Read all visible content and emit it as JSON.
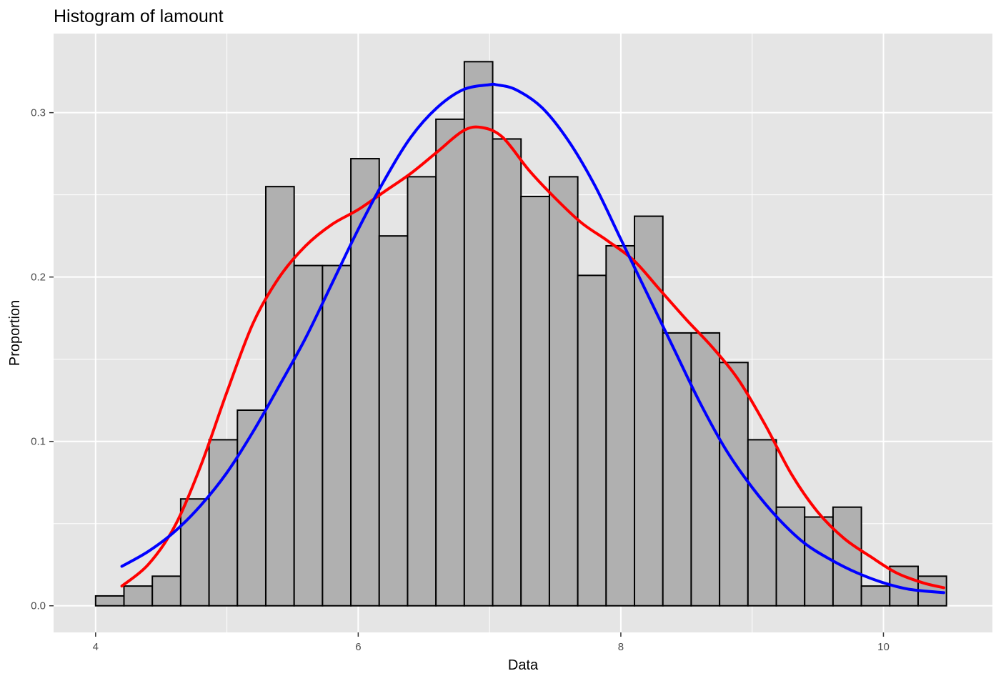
{
  "chart_data": {
    "type": "bar",
    "title": "Histogram of lamount",
    "xlabel": "Data",
    "ylabel": "Proportion",
    "xlim": [
      3.68,
      10.83
    ],
    "ylim": [
      -0.0162,
      0.3481
    ],
    "x_ticks": [
      4,
      6,
      8,
      10
    ],
    "x_tick_labels": [
      "4",
      "6",
      "8",
      "10"
    ],
    "y_ticks": [
      0.0,
      0.1,
      0.2,
      0.3
    ],
    "y_tick_labels": [
      "0.0",
      "0.1",
      "0.2",
      "0.3"
    ],
    "grid": true,
    "bins": {
      "edges": [
        4.0,
        4.216,
        4.432,
        4.648,
        4.864,
        5.08,
        5.296,
        5.512,
        5.728,
        5.944,
        6.16,
        6.376,
        6.592,
        6.808,
        7.024,
        7.24,
        7.456,
        7.672,
        7.888,
        8.104,
        8.32,
        8.536,
        8.752,
        8.968,
        9.184,
        9.4,
        9.616,
        9.832,
        10.048,
        10.264,
        10.48
      ],
      "values": [
        0.006,
        0.012,
        0.018,
        0.065,
        0.101,
        0.119,
        0.255,
        0.207,
        0.207,
        0.272,
        0.225,
        0.261,
        0.296,
        0.331,
        0.284,
        0.249,
        0.261,
        0.201,
        0.219,
        0.237,
        0.166,
        0.166,
        0.148,
        0.101,
        0.06,
        0.054,
        0.06,
        0.012,
        0.024,
        0.018
      ]
    },
    "series": [
      {
        "type": "line",
        "x": [
          4.2,
          4.4,
          4.6,
          4.8,
          5.0,
          5.2,
          5.4,
          5.6,
          5.8,
          6.0,
          6.2,
          6.4,
          6.6,
          6.8,
          6.94,
          7.1,
          7.3,
          7.5,
          7.7,
          7.9,
          8.1,
          8.3,
          8.5,
          8.7,
          8.9,
          9.1,
          9.3,
          9.5,
          9.7,
          9.9,
          10.1,
          10.3,
          10.46
        ],
        "y": [
          0.012,
          0.025,
          0.048,
          0.085,
          0.13,
          0.172,
          0.2,
          0.219,
          0.232,
          0.241,
          0.252,
          0.263,
          0.276,
          0.289,
          0.291,
          0.285,
          0.265,
          0.248,
          0.233,
          0.222,
          0.21,
          0.192,
          0.174,
          0.157,
          0.137,
          0.11,
          0.08,
          0.057,
          0.041,
          0.03,
          0.02,
          0.014,
          0.011
        ],
        "color": "#ff0000"
      },
      {
        "type": "line",
        "x": [
          4.2,
          4.4,
          4.6,
          4.8,
          5.0,
          5.2,
          5.4,
          5.6,
          5.8,
          6.0,
          6.2,
          6.4,
          6.6,
          6.8,
          7.0,
          7.05,
          7.2,
          7.4,
          7.6,
          7.8,
          8.0,
          8.2,
          8.4,
          8.6,
          8.8,
          9.0,
          9.2,
          9.4,
          9.6,
          9.8,
          10.0,
          10.2,
          10.46
        ],
        "y": [
          0.024,
          0.033,
          0.045,
          0.061,
          0.081,
          0.106,
          0.134,
          0.163,
          0.196,
          0.229,
          0.259,
          0.285,
          0.303,
          0.314,
          0.317,
          0.317,
          0.314,
          0.303,
          0.283,
          0.256,
          0.223,
          0.19,
          0.157,
          0.124,
          0.095,
          0.072,
          0.053,
          0.038,
          0.028,
          0.02,
          0.014,
          0.01,
          0.008
        ],
        "color": "#0000ff"
      }
    ],
    "colors": {
      "panel_bg": "#e5e5e5",
      "grid": "#ffffff",
      "bar_fill": "#b0b0b0",
      "bar_stroke": "#000000",
      "tick_label": "#4d4d4d"
    }
  }
}
